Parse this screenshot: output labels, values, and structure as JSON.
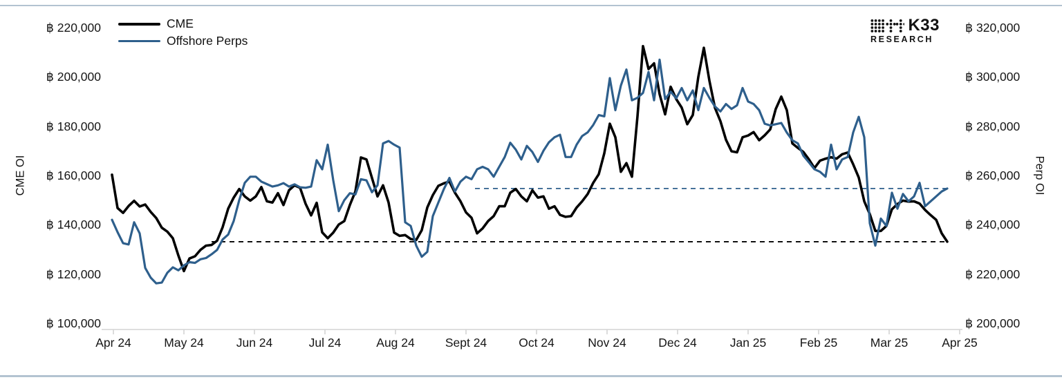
{
  "page": {
    "background": "#ffffff",
    "frame_rule_color": "#b3c3d1"
  },
  "brand": {
    "name": "K33",
    "subtitle": "RESEARCH"
  },
  "legend": {
    "items": [
      {
        "label": "CME",
        "color": "#000000"
      },
      {
        "label": "Offshore Perps",
        "color": "#2e5f8c"
      }
    ]
  },
  "axes": {
    "left": {
      "title": "CME OI",
      "tick_labels": [
        "฿ 220,000",
        "฿ 200,000",
        "฿ 180,000",
        "฿ 160,000",
        "฿ 140,000",
        "฿ 120,000",
        "฿ 100,000"
      ],
      "tick_values": [
        220000,
        200000,
        180000,
        160000,
        140000,
        120000,
        100000
      ]
    },
    "right": {
      "title": "Perp OI",
      "tick_labels": [
        "฿ 320,000",
        "฿ 300,000",
        "฿ 280,000",
        "฿ 260,000",
        "฿ 240,000",
        "฿ 220,000",
        "฿ 200,000"
      ],
      "tick_values": [
        320000,
        300000,
        280000,
        260000,
        240000,
        220000,
        200000
      ]
    },
    "x": {
      "tick_labels": [
        "Apr 24",
        "May 24",
        "Jun 24",
        "Jul 24",
        "Aug 24",
        "Sept 24",
        "Oct 24",
        "Nov 24",
        "Dec 24",
        "Jan 25",
        "Feb 25",
        "Mar 25",
        "Apr 25"
      ]
    }
  },
  "chart_data": {
    "type": "line",
    "title": "",
    "x_range": [
      "Apr 24",
      "Apr 25"
    ],
    "x_tick_labels": [
      "Apr 24",
      "May 24",
      "Jun 24",
      "Jul 24",
      "Aug 24",
      "Sept 24",
      "Oct 24",
      "Nov 24",
      "Dec 24",
      "Jan 25",
      "Feb 25",
      "Mar 25",
      "Apr 25"
    ],
    "y_left": {
      "label": "CME OI",
      "unit": "฿",
      "min": 100000,
      "max": 220000,
      "tick_step": 20000
    },
    "y_right": {
      "label": "Perp OI",
      "unit": "฿",
      "min": 200000,
      "max": 320000,
      "tick_step": 20000
    },
    "grid": false,
    "legend_position": "top-left",
    "values_unit": "thousands of ฿",
    "sampling": "daily series sampled ~every 2.4 days, Apr 2024 to Apr 2025",
    "series": [
      {
        "name": "CME",
        "axis": "left",
        "color": "#000000",
        "values_thousands": [
          160.3,
          146.8,
          144.8,
          147.6,
          149.7,
          147.4,
          148.2,
          145.2,
          142.7,
          138.8,
          137.2,
          134.5,
          127.5,
          121.2,
          126.3,
          127.2,
          129.8,
          131.5,
          131.8,
          133.5,
          139,
          146.5,
          151,
          154.5,
          151.5,
          149.8,
          151.5,
          155.3,
          149.5,
          149,
          152.8,
          148,
          154,
          156,
          155,
          148.5,
          143.8,
          148.9,
          136.9,
          134.5,
          136.8,
          140.1,
          141.5,
          148,
          153.5,
          167.3,
          166.5,
          159,
          151.5,
          156,
          149,
          136.8,
          135.5,
          135.8,
          134.2,
          133.8,
          137.8,
          147,
          152,
          155.8,
          156.8,
          157.5,
          153,
          149.5,
          145,
          142.8,
          136.5,
          138.5,
          141.5,
          143.5,
          147.5,
          147.5,
          153,
          154.5,
          151.5,
          149.5,
          154,
          151,
          151.5,
          146.5,
          147.5,
          144,
          143.2,
          143.5,
          147,
          149.5,
          152.5,
          157,
          160.5,
          169,
          181,
          175.5,
          161.5,
          165,
          159.5,
          184,
          212.5,
          203.2,
          205.5,
          193,
          184.8,
          196,
          191,
          187.5,
          180.8,
          184.5,
          200,
          211.8,
          198.5,
          187.5,
          182,
          174.5,
          169.8,
          169.4,
          175.5,
          176.2,
          177.6,
          174.3,
          176.3,
          178.7,
          187,
          192,
          186.5,
          173,
          171.2,
          169.5,
          166.5,
          163,
          166,
          166.8,
          167.4,
          166.8,
          168.6,
          169.3,
          164.5,
          159.2,
          149.5,
          144.3,
          137.5,
          137.5,
          139.5,
          146.3,
          148.4,
          149.8,
          149.4,
          149.5,
          148.6,
          146,
          143.9,
          142,
          136.5,
          133.1
        ]
      },
      {
        "name": "Offshore Perps",
        "axis": "right",
        "color": "#2e5f8c",
        "values_thousands": [
          242,
          237,
          232.5,
          232,
          241,
          236.5,
          222.5,
          218.5,
          216.2,
          216.5,
          220.5,
          222.7,
          221.5,
          223.5,
          224.8,
          224.5,
          226,
          226.5,
          228,
          229.8,
          234,
          236,
          241.5,
          250,
          257,
          259.5,
          259.5,
          257.5,
          256.5,
          255.5,
          256,
          256.9,
          255.5,
          256.4,
          255.2,
          255,
          255.5,
          266.2,
          262.5,
          272.5,
          258,
          245.5,
          250,
          252.8,
          252.3,
          258.5,
          258,
          253.2,
          256,
          273,
          274,
          272.5,
          271.3,
          241,
          239.5,
          231.5,
          227,
          229,
          243.5,
          249,
          254.5,
          259,
          253.5,
          257.5,
          259.5,
          258.5,
          262.5,
          263.5,
          262.5,
          259.5,
          263.5,
          267.5,
          273.3,
          270.5,
          266.5,
          272,
          269.5,
          265.5,
          270,
          273.5,
          275.5,
          276.5,
          267.5,
          267.5,
          272.5,
          276,
          277.5,
          280.5,
          284.5,
          284,
          299.5,
          286.5,
          296.5,
          303,
          290.5,
          291.5,
          293.5,
          302,
          290.5,
          307,
          291,
          294,
          291.3,
          295.5,
          290.5,
          294.5,
          286.5,
          295.5,
          291.5,
          288,
          286,
          289,
          287,
          288.5,
          295.5,
          290,
          289,
          286.5,
          281,
          280.3,
          280.8,
          281.3,
          277.4,
          274.3,
          273,
          268,
          265.3,
          262.5,
          261.5,
          259.5,
          272.5,
          262.5,
          266.5,
          267.5,
          277.5,
          283.8,
          275.5,
          240.6,
          231.5,
          242.5,
          239.5,
          253,
          246.5,
          252.5,
          249.5,
          251.5,
          257,
          247.5,
          249.5,
          251.5,
          253.5,
          254.7
        ]
      }
    ],
    "reference_lines": [
      {
        "series": "CME",
        "axis": "left",
        "style": "dashed",
        "value_thousands": 133.1,
        "color": "#000000"
      },
      {
        "series": "Offshore Perps",
        "axis": "right",
        "style": "dashed",
        "value_thousands": 254.7,
        "color": "#2e5f8c"
      }
    ]
  }
}
